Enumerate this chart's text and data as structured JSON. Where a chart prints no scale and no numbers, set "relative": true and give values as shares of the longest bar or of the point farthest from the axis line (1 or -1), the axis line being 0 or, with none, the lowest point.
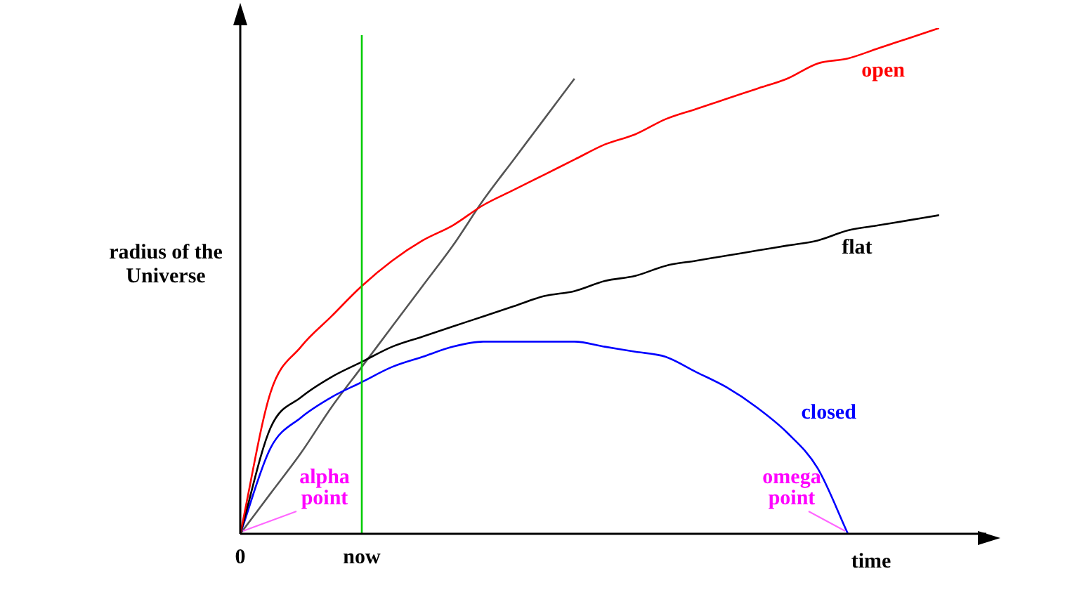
{
  "chart_data": {
    "type": "line",
    "relative": true,
    "xlabel": "time",
    "ylabel": "radius of the Universe",
    "categories": [
      "0",
      null,
      null,
      null,
      "now",
      null,
      null,
      null,
      null,
      null,
      null,
      null,
      null,
      null,
      null,
      null,
      null,
      null,
      null,
      null,
      null,
      null,
      null,
      null,
      null
    ],
    "series": [
      {
        "name": "open",
        "color": "#ff0000",
        "values": [
          0,
          0.28,
          0.37,
          0.43,
          0.49,
          0.54,
          0.58,
          0.61,
          0.65,
          0.68,
          0.71,
          0.74,
          0.77,
          0.79,
          0.82,
          0.84,
          0.86,
          0.88,
          0.9,
          0.93,
          0.94,
          0.96,
          0.98,
          1,
          null
        ]
      },
      {
        "name": "flat",
        "color": "#000000",
        "values": [
          0,
          0.21,
          0.27,
          0.31,
          0.34,
          0.37,
          0.39,
          0.41,
          0.43,
          0.45,
          0.47,
          0.48,
          0.5,
          0.51,
          0.53,
          0.54,
          0.55,
          0.56,
          0.57,
          0.58,
          0.6,
          0.61,
          0.62,
          0.63,
          null
        ]
      },
      {
        "name": "closed",
        "color": "#0000ff",
        "values": [
          0,
          0.17,
          0.23,
          0.27,
          0.3,
          0.33,
          0.35,
          0.37,
          0.38,
          0.38,
          0.38,
          0.38,
          0.37,
          0.36,
          0.35,
          0.32,
          0.29,
          0.25,
          0.2,
          0.13,
          0,
          null,
          null,
          null,
          null
        ]
      },
      {
        "color": "#555555",
        "values": [
          0,
          0.08,
          0.16,
          0.25,
          0.33,
          0.41,
          0.49,
          0.57,
          0.66,
          0.74,
          0.82,
          0.9,
          null,
          null,
          null,
          null,
          null,
          null,
          null,
          null,
          null,
          null,
          null,
          null,
          null
        ]
      }
    ],
    "ref_lines": [
      {
        "axis": "x",
        "value": "now",
        "color": "#00cc00"
      }
    ],
    "annotations": [
      "alpha point",
      "omega point"
    ],
    "grid": false,
    "legend": false,
    "marker": "none",
    "line_style": "solid",
    "tick_labels": "x"
  }
}
